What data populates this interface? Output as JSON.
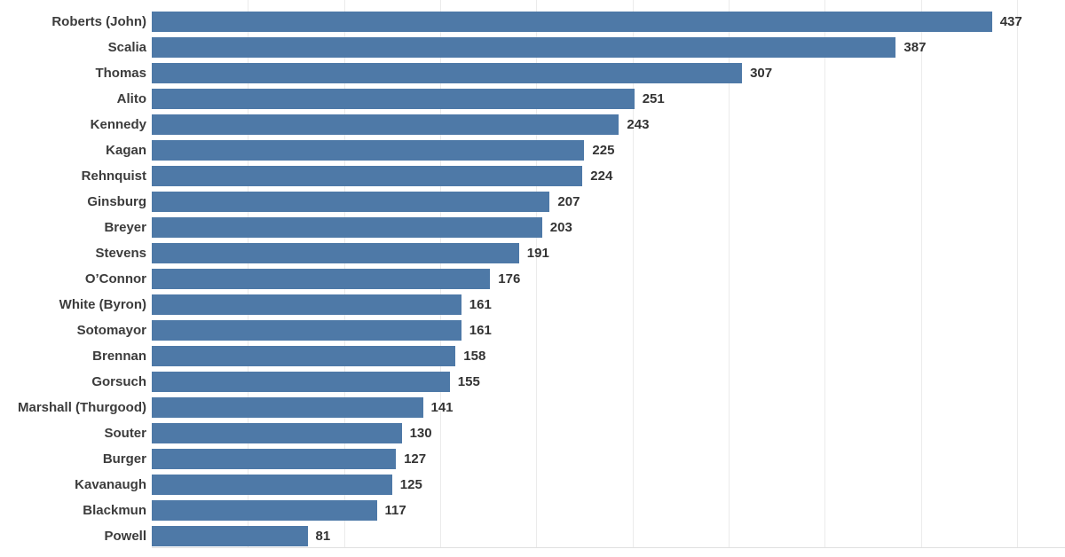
{
  "chart_data": {
    "type": "bar",
    "orientation": "horizontal",
    "categories": [
      "Roberts (John)",
      "Scalia",
      "Thomas",
      "Alito",
      "Kennedy",
      "Kagan",
      "Rehnquist",
      "Ginsburg",
      "Breyer",
      "Stevens",
      "O’Connor",
      "White (Byron)",
      "Sotomayor",
      "Brennan",
      "Gorsuch",
      "Marshall (Thurgood)",
      "Souter",
      "Burger",
      "Kavanaugh",
      "Blackmun",
      "Powell"
    ],
    "values": [
      437,
      387,
      307,
      251,
      243,
      225,
      224,
      207,
      203,
      191,
      176,
      161,
      161,
      158,
      155,
      141,
      130,
      127,
      125,
      117,
      81
    ],
    "value_labels": true,
    "xlim": [
      0,
      475
    ],
    "gridline_step": 50,
    "grid": true,
    "legend": "none",
    "colors": {
      "bar": "#4e79a7",
      "category_label": "#3c3c3c",
      "value_label": "#333333",
      "gridline": "#ebebeb",
      "axis_line": "#e0e0e0",
      "background": "#ffffff"
    }
  }
}
